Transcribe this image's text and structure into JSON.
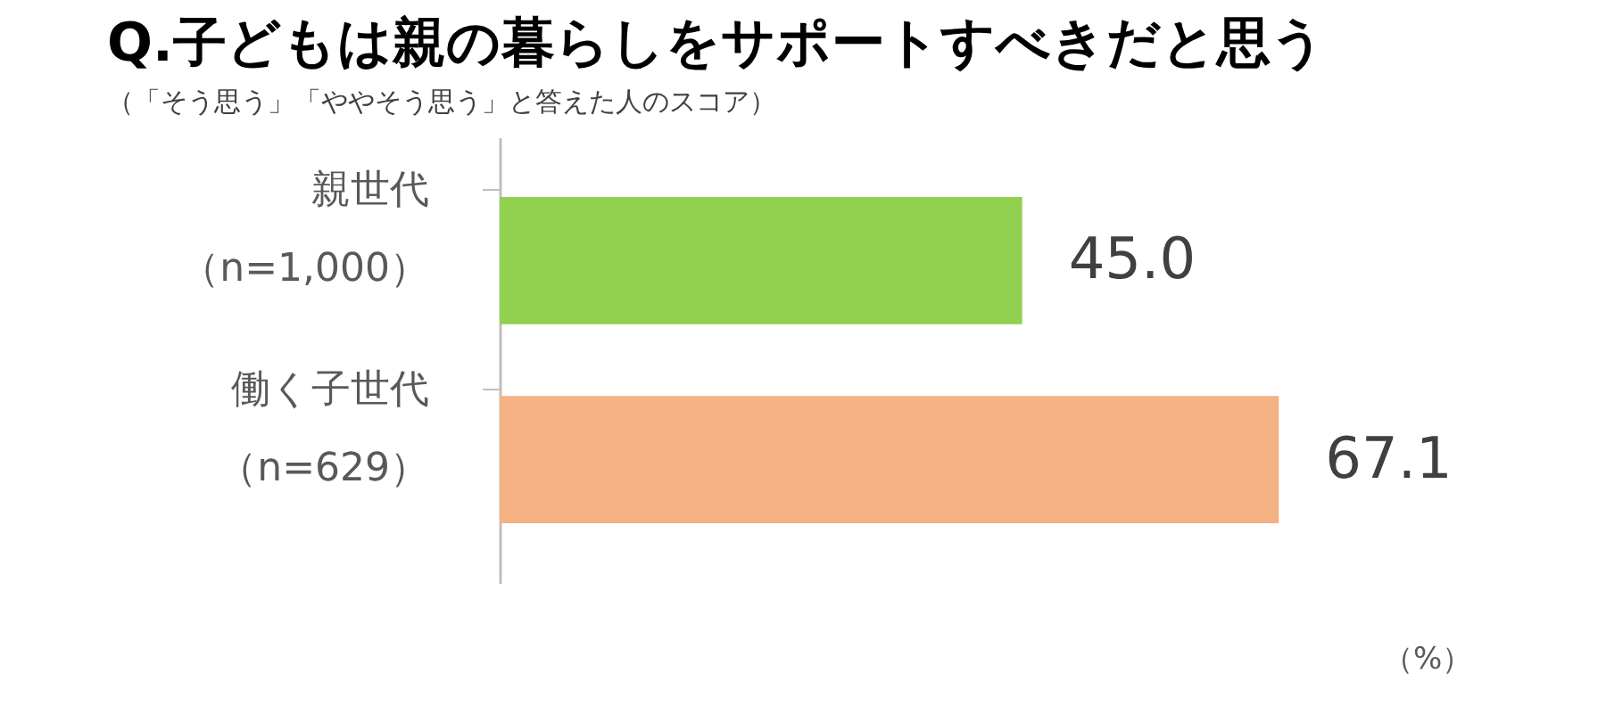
{
  "chart_data": {
    "type": "bar",
    "orientation": "horizontal",
    "title": "Q.子どもは親の暮らしをサポートすべきだと思う",
    "subtitle": "（「そう思う」「ややそう思う」と答えた人のスコア）",
    "categories": [
      "親世代（n=1,000）",
      "働く子世代（n=629）"
    ],
    "values": [
      45.0,
      67.1
    ],
    "colors": [
      "#92d050",
      "#f4b183"
    ],
    "value_labels": [
      "45.0",
      "67.1"
    ],
    "annotations": [
      "（%）"
    ]
  }
}
